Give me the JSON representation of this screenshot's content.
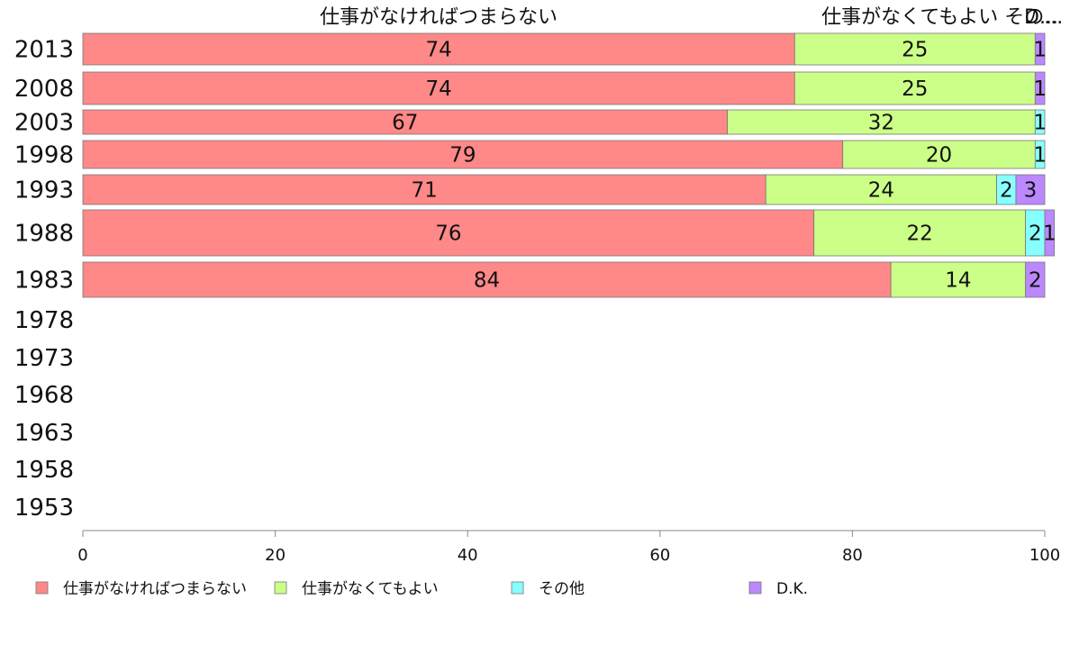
{
  "chart_data": {
    "type": "bar",
    "orientation": "horizontal",
    "stacked": true,
    "categories": [
      "2013",
      "2008",
      "2003",
      "1998",
      "1993",
      "1988",
      "1983",
      "1978",
      "1973",
      "1968",
      "1963",
      "1958",
      "1953"
    ],
    "series": [
      {
        "name": "仕事がなければつまらない",
        "color": "#ff8888",
        "values": [
          74,
          74,
          67,
          79,
          71,
          76,
          84,
          null,
          null,
          null,
          null,
          null,
          null
        ]
      },
      {
        "name": "仕事がなくてもよい",
        "color": "#ccff88",
        "values": [
          25,
          25,
          32,
          20,
          24,
          22,
          14,
          null,
          null,
          null,
          null,
          null,
          null
        ]
      },
      {
        "name": "その他",
        "color": "#88ffff",
        "values": [
          0,
          0,
          1,
          1,
          2,
          2,
          0,
          null,
          null,
          null,
          null,
          null,
          null
        ]
      },
      {
        "name": "D.K.",
        "color": "#bb88ff",
        "values": [
          1,
          1,
          0,
          0,
          3,
          1,
          2,
          null,
          null,
          null,
          null,
          null,
          null
        ]
      }
    ],
    "header_labels": [
      "仕事がなければつまらない",
      "仕事がなくてもよい その...",
      "D..."
    ],
    "xlim": [
      0,
      100
    ],
    "x_ticks": [
      0,
      20,
      40,
      60,
      80,
      100
    ],
    "grid": false,
    "legend": "bottom"
  }
}
